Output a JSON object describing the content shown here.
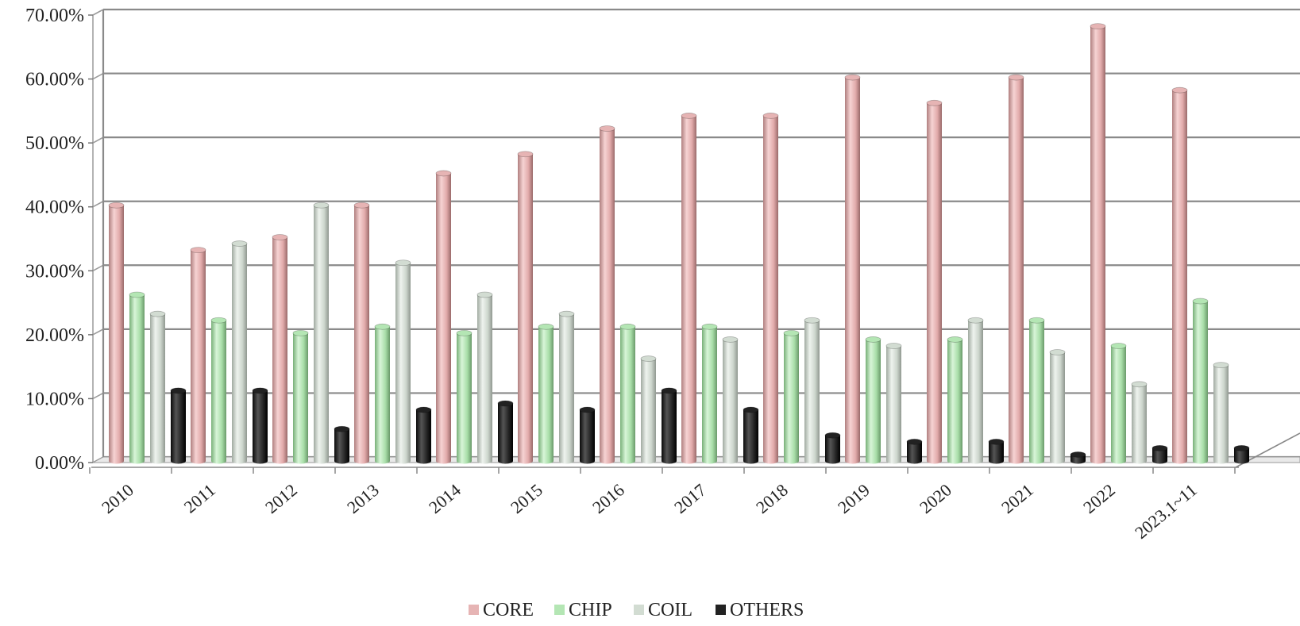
{
  "chart_data": {
    "type": "bar",
    "title": "",
    "xlabel": "",
    "ylabel": "",
    "ylim": [
      0,
      70
    ],
    "yticks": [
      "0.00%",
      "10.00%",
      "20.00%",
      "30.00%",
      "40.00%",
      "50.00%",
      "60.00%",
      "70.00%"
    ],
    "grid": true,
    "legend_position": "bottom",
    "categories": [
      "2010",
      "2011",
      "2012",
      "2013",
      "2014",
      "2015",
      "2016",
      "2017",
      "2018",
      "2019",
      "2020",
      "2021",
      "2022",
      "2023.1~11"
    ],
    "series": [
      {
        "name": "CORE",
        "color": "#e6b4b4",
        "values": [
          40,
          33,
          35,
          40,
          45,
          48,
          52,
          54,
          54,
          60,
          56,
          60,
          68,
          58
        ]
      },
      {
        "name": "CHIP",
        "color": "#b4e6b4",
        "values": [
          26,
          22,
          20,
          21,
          20,
          21,
          21,
          21,
          20,
          19,
          19,
          22,
          18,
          25
        ]
      },
      {
        "name": "COIL",
        "color": "#d2dcd2",
        "values": [
          23,
          34,
          40,
          31,
          26,
          23,
          16,
          19,
          22,
          18,
          22,
          17,
          12,
          15
        ]
      },
      {
        "name": "OTHERS",
        "color": "#222222",
        "values": [
          11,
          11,
          5,
          8,
          9,
          8,
          11,
          8,
          4,
          3,
          3,
          1,
          2,
          2
        ]
      }
    ]
  }
}
